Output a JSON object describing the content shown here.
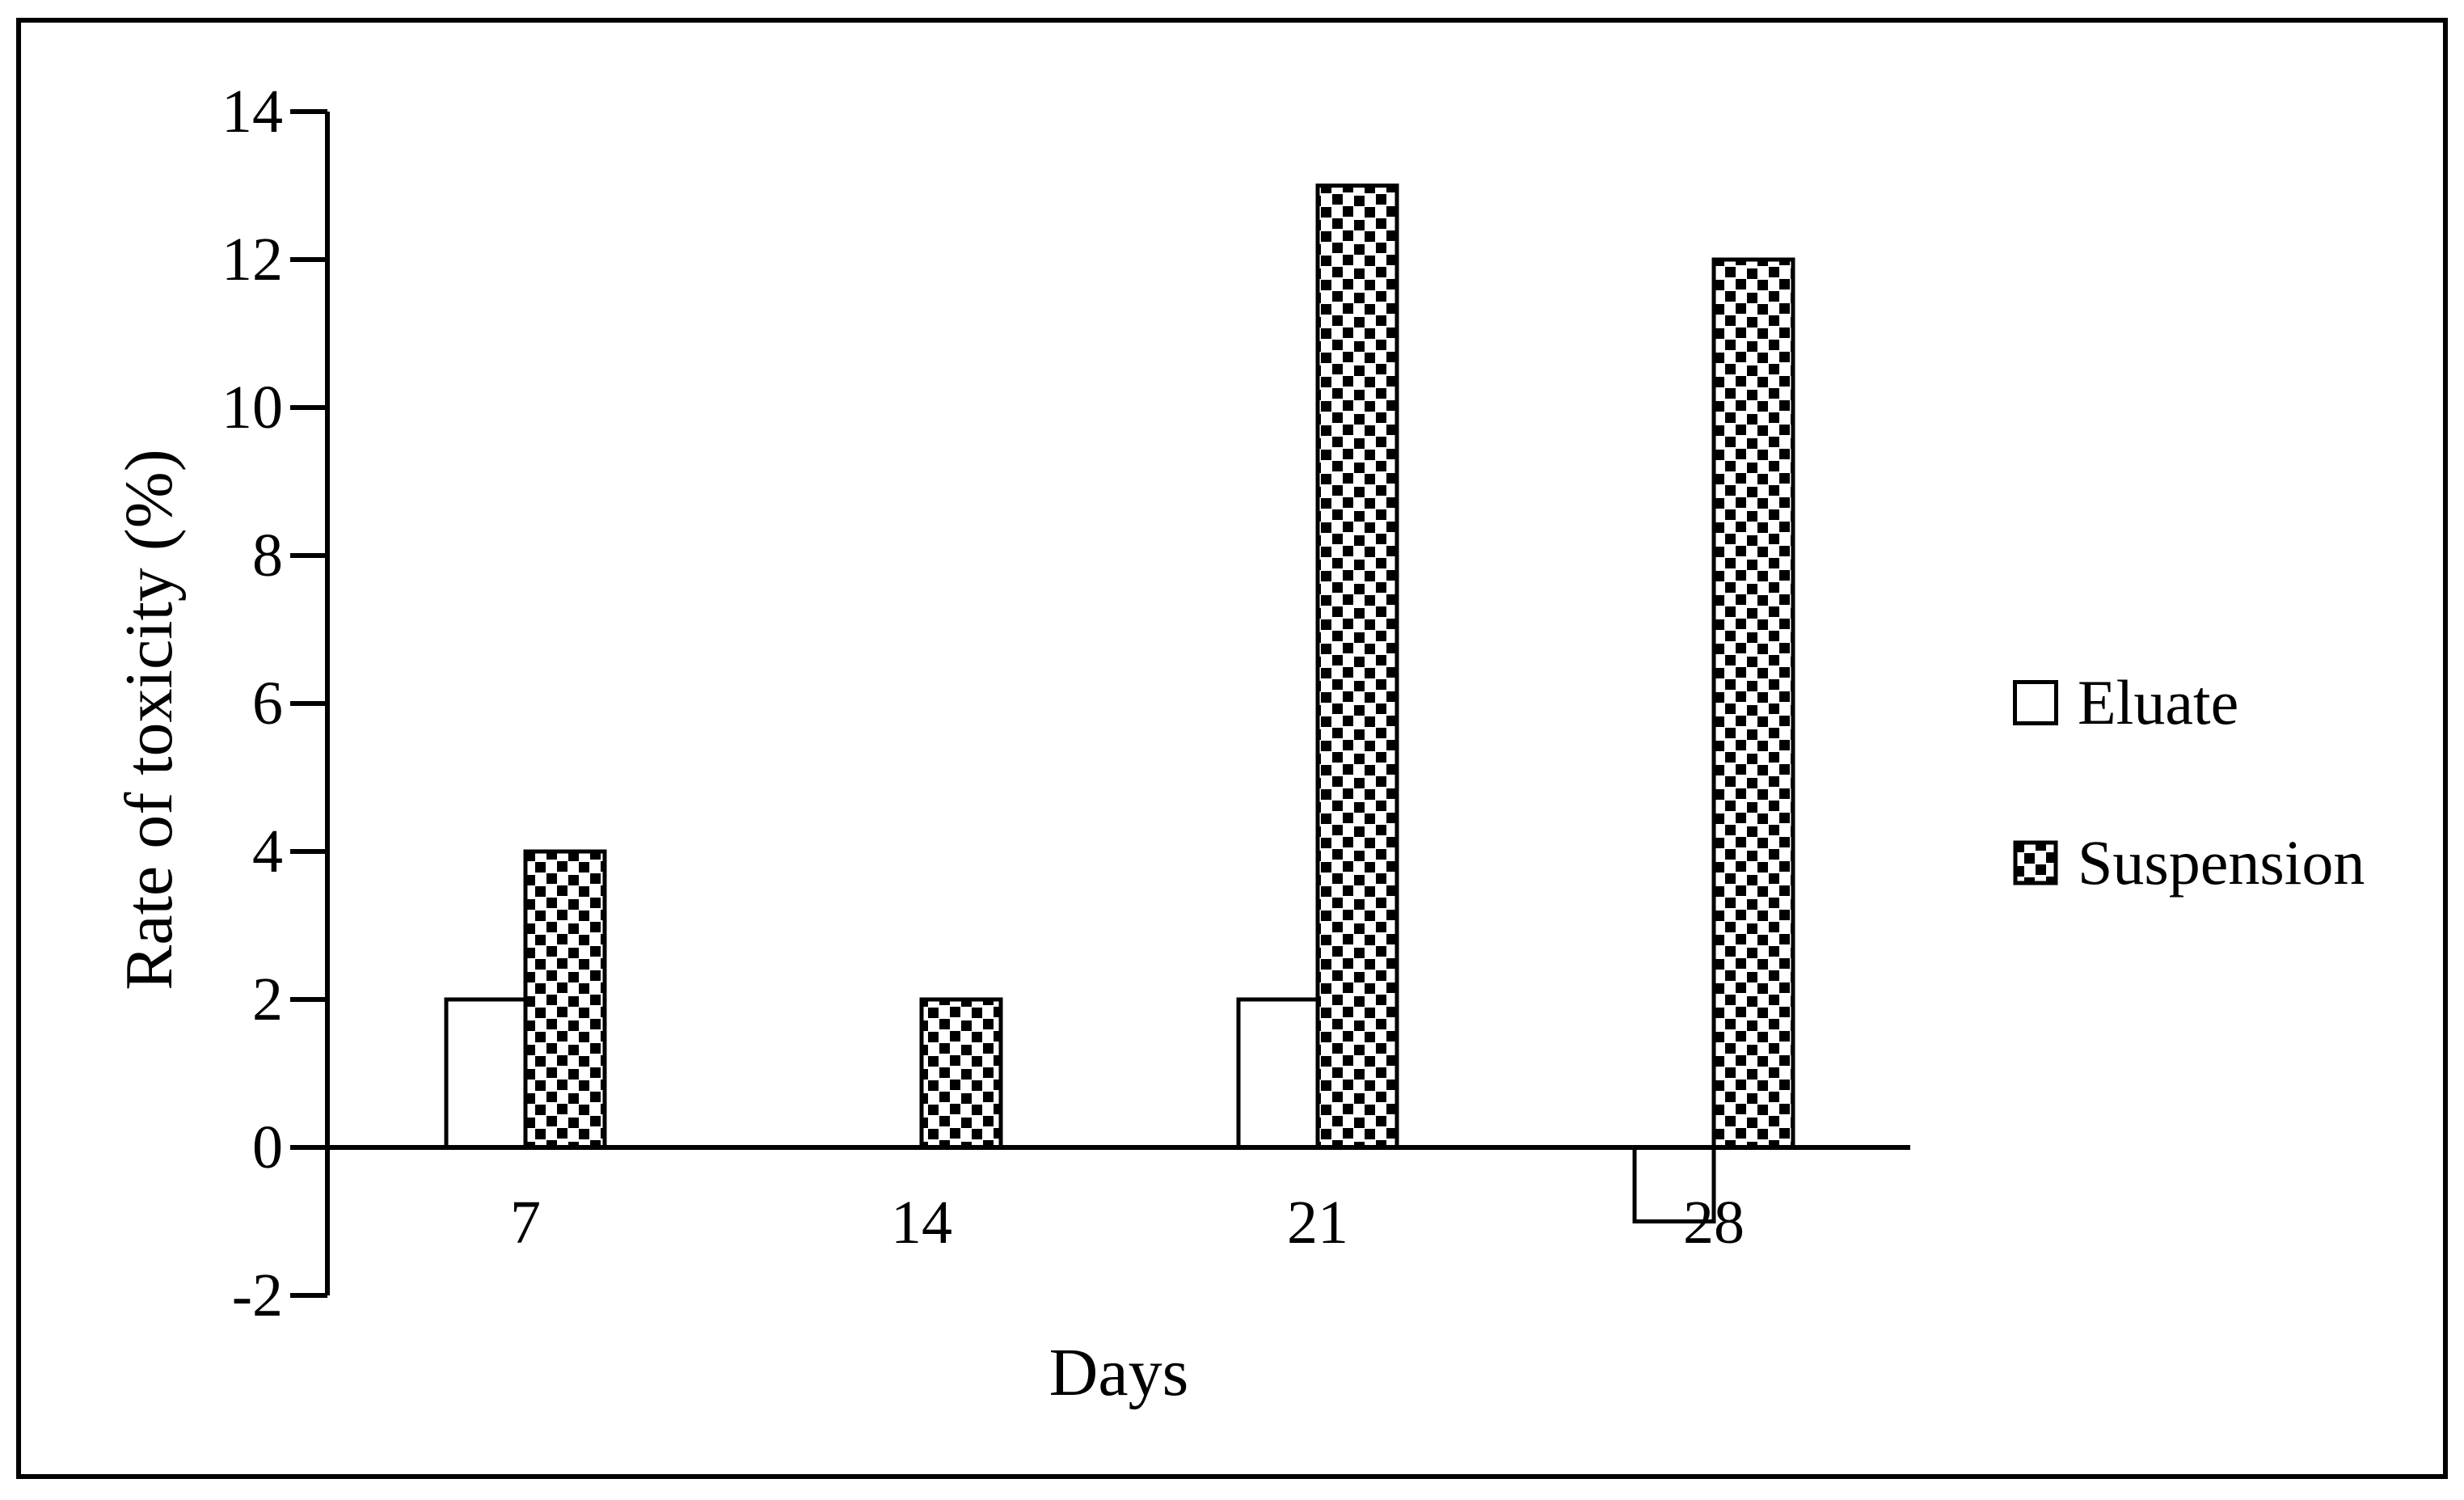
{
  "figure": {
    "background_color": "#ffffff",
    "border_color": "#000000"
  },
  "chart_data": {
    "type": "bar",
    "title": "",
    "categories": [
      "7",
      "14",
      "21",
      "28"
    ],
    "series": [
      {
        "name": "Eluate",
        "values": [
          2,
          0,
          2,
          -1
        ],
        "fill_style": "white",
        "swatch": "white-square-icon"
      },
      {
        "name": "Suspension",
        "values": [
          4,
          2,
          13,
          12
        ],
        "fill_style": "speckle-pattern",
        "swatch": "dotted-square-icon"
      }
    ],
    "xlabel": "Days",
    "ylabel": "Rate of toxicity (%)",
    "ylim": [
      -2,
      14
    ],
    "ytick_step": 2,
    "yticks": [
      14,
      12,
      10,
      8,
      6,
      4,
      2,
      0,
      -2
    ],
    "grid": false,
    "legend_position": "right",
    "bar_outline_color": "#000000",
    "axis_color": "#000000",
    "pattern_color": "#000000"
  }
}
